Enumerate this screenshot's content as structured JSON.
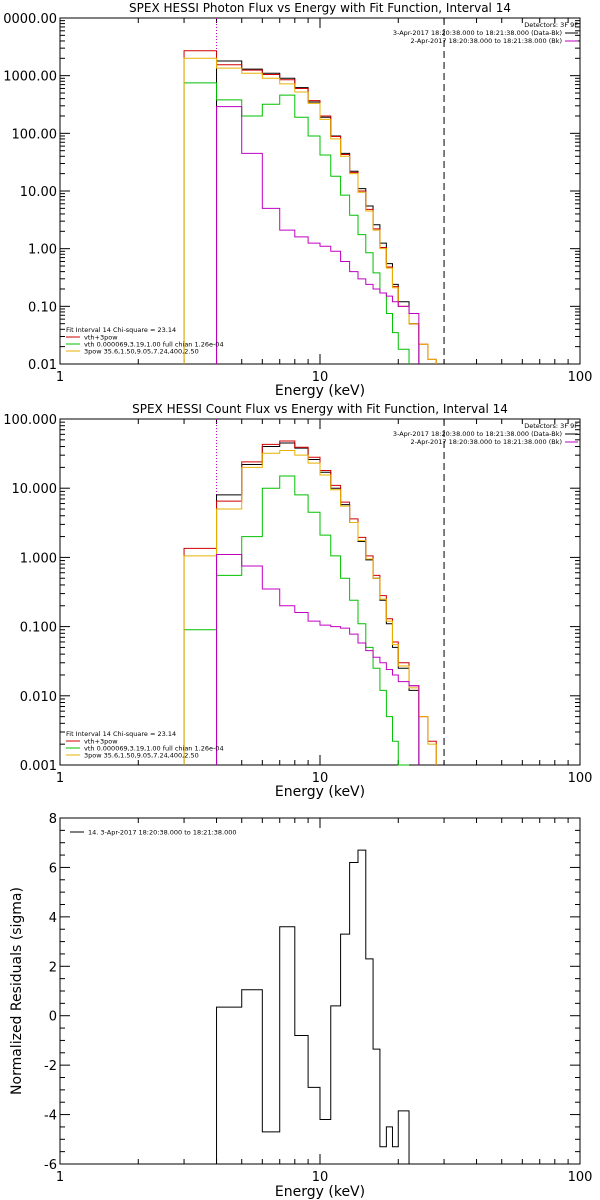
{
  "chart_data": [
    {
      "type": "line",
      "title": "SPEX HESSI Photon Flux vs Energy with Fit Function, Interval 14",
      "xlabel": "Energy (keV)",
      "ylabel": "",
      "xscale": "log",
      "yscale": "log",
      "xlim": [
        1,
        100
      ],
      "ylim": [
        0.01,
        10000
      ],
      "xticks": [
        "1",
        "10",
        "100"
      ],
      "yticks": [
        "0.01",
        "0.10",
        "1.00",
        "10.00",
        "100.00",
        "1000.00",
        "0000.00"
      ],
      "energy_edges": [
        3,
        4,
        5,
        6,
        7,
        8,
        9,
        10,
        11,
        12,
        13,
        14,
        15,
        16,
        17,
        18,
        19,
        20,
        22,
        24,
        26,
        28,
        30,
        33,
        36,
        40
      ],
      "vlines": [
        {
          "x": 4,
          "style": "dotted",
          "color": "#c000c0"
        },
        {
          "x": 30,
          "style": "dashed",
          "color": "#000000"
        }
      ],
      "legend_top": [
        "Detectors: 3F 9F",
        "3-Apr-2017 18:20:38.000 to 18:21:38.000 (Data-Bk)",
        "2-Apr-2017 18:20:38.000 to 18:21:38.000 (Bk)"
      ],
      "legend_bottom": [
        "Fit Interval 14    Chi-square = 23.14",
        "vth+3pow",
        "vth 0.000069,3.19,1.00  full chian 1.26e-04",
        "3pow 35.6,1.50,9.05,7.24,400,2.50"
      ],
      "series": [
        {
          "name": "3-Apr-2017 18:20:38.000 to 18:21:38.000 (Data-Bk)",
          "color": "#000000",
          "x0": 4,
          "values": [
            1800,
            1300,
            1100,
            900,
            620,
            350,
            190,
            90,
            45,
            22,
            11,
            5.5,
            2.6,
            1.25,
            0.55,
            0.24,
            0.12,
            0.05
          ]
        },
        {
          "name": "vth+3pow",
          "color": "#d00000",
          "x0": 3,
          "values": [
            2700,
            1550,
            1250,
            1050,
            850,
            600,
            370,
            200,
            88,
            43,
            21,
            10,
            4.8,
            2.2,
            1.05,
            0.48,
            0.22,
            0.1,
            0.05,
            0.022,
            0.012
          ]
        },
        {
          "name": "vth 0.000069,3.19,1.00  full chian 1.26e-04",
          "color": "#00c000",
          "x0": 3,
          "values": [
            750,
            380,
            200,
            320,
            460,
            190,
            90,
            42,
            18,
            8.5,
            3.8,
            1.75,
            0.85,
            0.38,
            0.17,
            0.075,
            0.035,
            0.018
          ]
        },
        {
          "name": "3pow 35.6,1.50,9.05,7.24,400,2.50",
          "color": "#e8b000",
          "x0": 3,
          "values": [
            2000,
            1350,
            1100,
            900,
            720,
            520,
            330,
            175,
            80,
            40,
            20,
            9.5,
            4.5,
            2.1,
            1.0,
            0.46,
            0.21,
            0.1,
            0.05,
            0.022,
            0.012
          ]
        },
        {
          "name": "2-Apr-2017 18:20:38.000 to 18:21:38.000 (Bk)",
          "color": "#c000c0",
          "x0": 4,
          "values": [
            290,
            45,
            5,
            2.1,
            1.6,
            1.25,
            1.1,
            0.9,
            0.6,
            0.4,
            0.3,
            0.24,
            0.2,
            0.17,
            0.15,
            0.12,
            0.1,
            0.075
          ]
        }
      ]
    },
    {
      "type": "line",
      "title": "SPEX HESSI Count Flux vs Energy with Fit Function, Interval 14",
      "xlabel": "Energy (keV)",
      "ylabel": "",
      "xscale": "log",
      "yscale": "log",
      "xlim": [
        1,
        100
      ],
      "ylim": [
        0.001,
        100
      ],
      "xticks": [
        "1",
        "10",
        "100"
      ],
      "yticks": [
        "0.001",
        "0.010",
        "0.100",
        "1.000",
        "10.000",
        "100.000"
      ],
      "energy_edges": [
        3,
        4,
        5,
        6,
        7,
        8,
        9,
        10,
        11,
        12,
        13,
        14,
        15,
        16,
        17,
        18,
        19,
        20,
        22,
        24,
        26,
        28,
        30,
        33,
        36,
        40
      ],
      "vlines": [
        {
          "x": 4,
          "style": "dotted",
          "color": "#c000c0"
        },
        {
          "x": 30,
          "style": "dashed",
          "color": "#000000"
        }
      ],
      "legend_top": [
        "Detectors: 3F 9F",
        "3-Apr-2017 18:20:38.000 to 18:21:38.000 (Data-Bk)",
        "2-Apr-2017 18:20:38.000 to 18:21:38.000 (Bk)"
      ],
      "legend_bottom": [
        "Fit Interval 14    Chi-square = 23.14",
        "vth+3pow",
        "vth 0.000069,3.19,1.00  full chian 1.26e-04",
        "3pow 35.6,1.50,9.05,7.24,400,2.50"
      ],
      "series": [
        {
          "name": "3-Apr-2017 18:20:38.000 to 18:21:38.000 (Data-Bk)",
          "color": "#000000",
          "x0": 4,
          "values": [
            8,
            22,
            40,
            45,
            38,
            26,
            17,
            10,
            5.8,
            3.2,
            1.7,
            0.92,
            0.5,
            0.24,
            0.11,
            0.05,
            0.025,
            0.012
          ]
        },
        {
          "name": "vth+3pow",
          "color": "#d00000",
          "x0": 3,
          "values": [
            1.35,
            6.5,
            24,
            43,
            48,
            39,
            28,
            18,
            11,
            6.3,
            3.6,
            1.95,
            1.05,
            0.55,
            0.28,
            0.13,
            0.06,
            0.03,
            0.014,
            0.005,
            0.0022
          ]
        },
        {
          "name": "vth 0.000069,3.19,1.00  full chian 1.26e-04",
          "color": "#00c000",
          "x0": 3,
          "values": [
            0.09,
            0.55,
            2,
            10,
            15,
            8,
            4.5,
            2.1,
            1.05,
            0.5,
            0.24,
            0.11,
            0.05,
            0.025,
            0.012,
            0.005,
            0.0022,
            0.001
          ]
        },
        {
          "name": "3pow 35.6,1.50,9.05,7.24,400,2.50",
          "color": "#e8b000",
          "x0": 3,
          "values": [
            1.05,
            5,
            20,
            32,
            35,
            30,
            23,
            15.5,
            9.5,
            5.5,
            3.2,
            1.75,
            0.95,
            0.5,
            0.25,
            0.12,
            0.055,
            0.027,
            0.013,
            0.005,
            0.002
          ]
        },
        {
          "name": "2-Apr-2017 18:20:38.000 to 18:21:38.000 (Bk)",
          "color": "#c000c0",
          "x0": 4,
          "values": [
            1.1,
            0.75,
            0.35,
            0.2,
            0.16,
            0.12,
            0.105,
            0.1,
            0.095,
            0.078,
            0.058,
            0.045,
            0.036,
            0.03,
            0.024,
            0.02,
            0.016,
            0.014
          ]
        }
      ]
    },
    {
      "type": "line",
      "title": "",
      "xlabel": "Energy (keV)",
      "ylabel": "Normalized Residuals (sigma)",
      "xscale": "log",
      "yscale": "linear",
      "xlim": [
        1,
        100
      ],
      "ylim": [
        -6,
        8
      ],
      "xticks": [
        "1",
        "10",
        "100"
      ],
      "yticks": [
        "-6",
        "-4",
        "-2",
        "0",
        "2",
        "4",
        "6",
        "8"
      ],
      "energy_edges": [
        4,
        5,
        6,
        7,
        8,
        9,
        10,
        11,
        12,
        13,
        14,
        15,
        16,
        17,
        18,
        19,
        20,
        22,
        24,
        26,
        28,
        30
      ],
      "legend": [
        "14.  3-Apr-2017 18:20:38.000 to 18:21:38.000"
      ],
      "series": [
        {
          "name": "14.  3-Apr-2017 18:20:38.000 to 18:21:38.000",
          "color": "#000000",
          "values": [
            0.35,
            1.05,
            -4.7,
            3.6,
            -0.8,
            -2.9,
            -4.2,
            0.4,
            3.3,
            6.2,
            6.7,
            2.3,
            -1.35,
            -5.3,
            -4.5,
            -5.3,
            -3.85
          ]
        }
      ]
    }
  ]
}
